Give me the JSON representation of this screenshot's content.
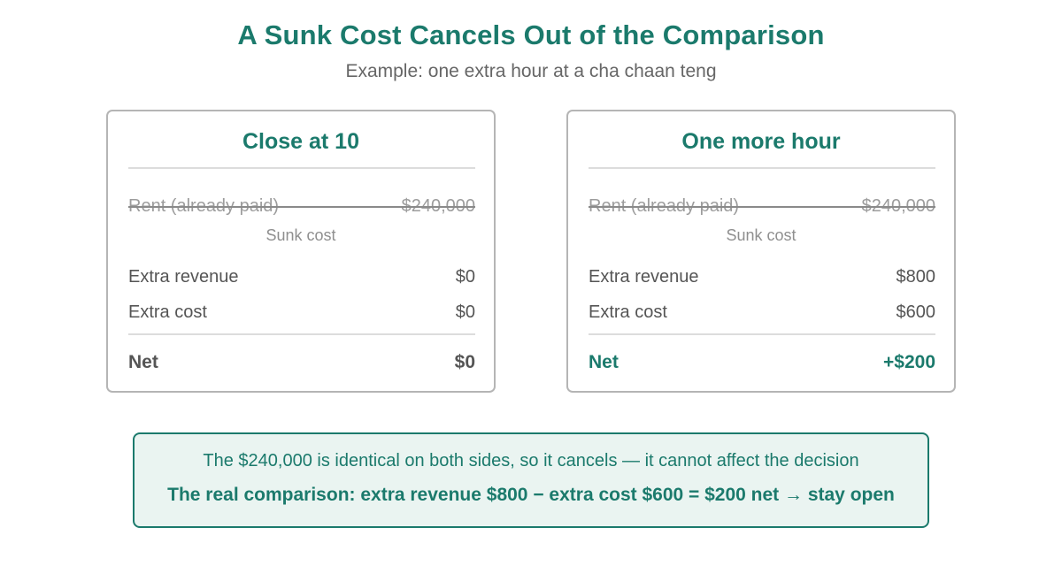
{
  "title": "A Sunk Cost Cancels Out of the Comparison",
  "subtitle": "Example: one extra hour at a cha chaan teng",
  "colors": {
    "accent": "#1b7a6c",
    "summary_bg": "#eaf4f1",
    "card_border": "#b5b5b5",
    "muted": "#9c9c9c"
  },
  "cards": [
    {
      "title": "Close at 10",
      "sunk_label": "Rent (already paid)",
      "sunk_value": "$240,000",
      "sunk_note": "Sunk cost",
      "revenue_label": "Extra revenue",
      "revenue_value": "$0",
      "cost_label": "Extra cost",
      "cost_value": "$0",
      "net_label": "Net",
      "net_value": "$0"
    },
    {
      "title": "One more hour",
      "sunk_label": "Rent (already paid)",
      "sunk_value": "$240,000",
      "sunk_note": "Sunk cost",
      "revenue_label": "Extra revenue",
      "revenue_value": "$800",
      "cost_label": "Extra cost",
      "cost_value": "$600",
      "net_label": "Net",
      "net_value": "+$200"
    }
  ],
  "summary": {
    "line1": "The $240,000 is identical on both sides, so it cancels — it cannot affect the decision",
    "line2": "The real comparison: extra revenue $800 − extra cost $600 = $200 net → stay open"
  }
}
